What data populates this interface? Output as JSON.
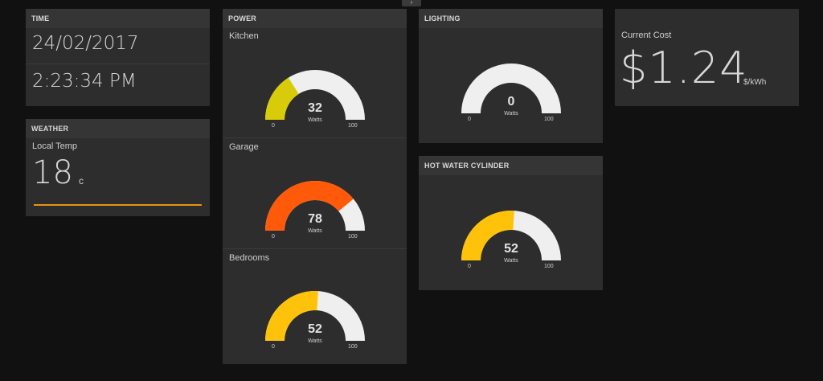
{
  "nav": {
    "toggle_icon": "chevron-icon",
    "toggle_glyph": "›"
  },
  "time": {
    "header": "TIME",
    "date": "24/02/2017",
    "clock": "2:23:34 PM"
  },
  "weather": {
    "header": "WEATHER",
    "label": "Local Temp",
    "value": "18",
    "unit": "c",
    "line_color": "#e8930c"
  },
  "power": {
    "header": "POWER",
    "gauges": [
      {
        "label": "Kitchen",
        "value": 32,
        "unit": "Watts",
        "min": 0,
        "max": 100,
        "color": "#d8cc0a"
      },
      {
        "label": "Garage",
        "value": 78,
        "unit": "Watts",
        "min": 0,
        "max": 100,
        "color": "#ff5a0a"
      },
      {
        "label": "Bedrooms",
        "value": 52,
        "unit": "Watts",
        "min": 0,
        "max": 100,
        "color": "#ffc20a"
      }
    ]
  },
  "lighting": {
    "header": "LIGHTING",
    "gauge": {
      "value": 0,
      "unit": "Watts",
      "min": 0,
      "max": 100,
      "color": "#ffc20a"
    }
  },
  "hot_water": {
    "header": "HOT WATER CYLINDER",
    "gauge": {
      "value": 52,
      "unit": "Watts",
      "min": 0,
      "max": 100,
      "color": "#ffc20a"
    }
  },
  "cost": {
    "label": "Current Cost",
    "value": "$1.24",
    "unit": "$/kWh"
  },
  "gauge_track_color": "#efefef"
}
